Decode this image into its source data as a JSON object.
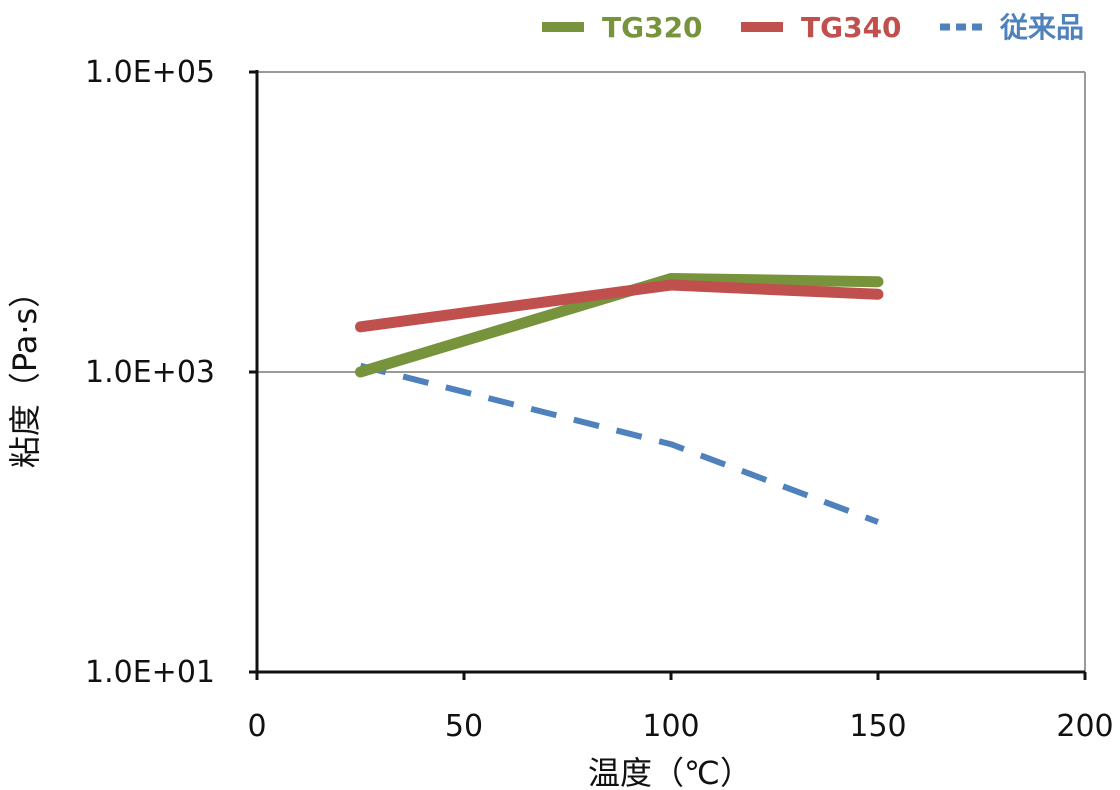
{
  "chart_data": {
    "type": "line",
    "xlabel": "温度（℃）",
    "ylabel": "粘度（Pa·s）",
    "xlim": [
      0,
      200
    ],
    "ylim": [
      10,
      100000
    ],
    "yscale": "log",
    "x_ticks": [
      "0",
      "50",
      "100",
      "150",
      "200"
    ],
    "y_ticks": [
      "1.0E+01",
      "1.0E+03",
      "1.0E+05"
    ],
    "grid": "horizontal",
    "legend_position": "top-right",
    "series": [
      {
        "name": "TG320",
        "color": "#77933c",
        "style": "solid",
        "x": [
          25,
          100,
          150
        ],
        "y": [
          1000,
          4200,
          4000
        ]
      },
      {
        "name": "TG340",
        "color": "#c0504d",
        "style": "solid",
        "x": [
          25,
          100,
          150
        ],
        "y": [
          2000,
          3800,
          3300
        ]
      },
      {
        "name": "従来品",
        "color": "#4f81bd",
        "style": "dashed",
        "x": [
          25,
          100,
          150
        ],
        "y": [
          1100,
          330,
          100
        ]
      }
    ]
  }
}
